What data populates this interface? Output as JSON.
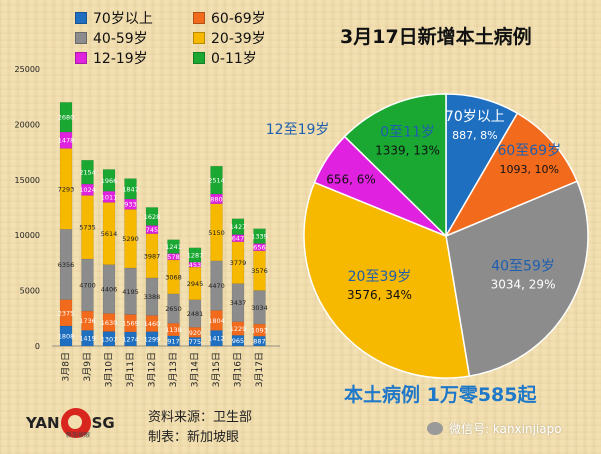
{
  "legend": [
    {
      "label": "70岁以上",
      "color": "#1f6fc0"
    },
    {
      "label": "60-69岁",
      "color": "#f26b1d"
    },
    {
      "label": "40-59岁",
      "color": "#8c8c8c"
    },
    {
      "label": "20-39岁",
      "color": "#f7b800"
    },
    {
      "label": "12-19岁",
      "color": "#e022e0"
    },
    {
      "label": "0-11岁",
      "color": "#1aa832"
    }
  ],
  "source_text": "资料来源：卫生部",
  "maker_text": "制表：新加坡眼",
  "logo": {
    "left": "YAN",
    "right": "SG",
    "sub": "新加坡眼"
  },
  "wechat_text": "微信号: kanxinjiapo",
  "total_text": "本土病例 1万零585起",
  "chart_data": [
    {
      "type": "bar",
      "stacked": true,
      "categories": [
        "3月8日",
        "3月9日",
        "3月10日",
        "3月11日",
        "3月12日",
        "3月13日",
        "3月14日",
        "3月15日",
        "3月16日",
        "3月17日"
      ],
      "ylim": [
        0,
        25000
      ],
      "yticks": [
        "0",
        "5000",
        "10000",
        "15000",
        "20000",
        "25000"
      ],
      "series": [
        {
          "name": "70岁以上",
          "values": [
            1808,
            1419,
            1307,
            1274,
            1299,
            917,
            775,
            1412,
            965,
            887
          ],
          "labels": [
            "1808",
            "1419",
            "1307",
            "1274",
            "1299",
            "917",
            "775",
            "1412",
            "965",
            "887"
          ]
        },
        {
          "name": "60-69岁",
          "values": [
            2375,
            1736,
            1630,
            1569,
            1460,
            1138,
            920,
            1804,
            1229,
            1093
          ],
          "labels": [
            "2375",
            "1736",
            "1630",
            "1569",
            "1460",
            "1138",
            "920",
            "1804",
            "1229",
            "1093"
          ]
        },
        {
          "name": "40-59岁",
          "values": [
            6356,
            4700,
            4406,
            4195,
            3388,
            2650,
            2481,
            4470,
            3437,
            3034
          ],
          "labels": [
            "6356",
            "4700",
            "4406",
            "4195",
            "3388",
            "2650",
            "2481",
            "4470",
            "3437",
            "3034"
          ]
        },
        {
          "name": "20-39岁",
          "values": [
            7293,
            5735,
            5614,
            5290,
            3987,
            3068,
            2945,
            5150,
            3779,
            3576
          ],
          "labels": [
            "7293",
            "5735",
            "5614",
            "5290",
            "3987",
            "3068",
            "2945",
            "5150",
            "3779",
            "3576"
          ]
        },
        {
          "name": "12-19岁",
          "values": [
            1478,
            1024,
            1011,
            933,
            745,
            578,
            453,
            880,
            647,
            656
          ],
          "labels": [
            "1478",
            "1024",
            "1011",
            "933",
            "745",
            "578",
            "453",
            "880",
            "647",
            "656"
          ]
        },
        {
          "name": "0-11岁",
          "values": [
            2680,
            2154,
            1966,
            1847,
            1628,
            1241,
            1287,
            2514,
            1427,
            1339
          ],
          "labels": [
            "2680",
            "2154",
            "1966",
            "1847",
            "1628",
            "1241",
            "1287",
            "2514",
            "1427",
            "1339"
          ]
        }
      ]
    },
    {
      "type": "pie",
      "title": "3月17日新增本土病例",
      "slices": [
        {
          "label": "70岁以上",
          "value": 887,
          "percent": "8%",
          "color": "#1f6fc0",
          "name_text": "70岁以上",
          "value_text": "887, 8%"
        },
        {
          "label": "60至69岁",
          "value": 1093,
          "percent": "10%",
          "color": "#f26b1d",
          "name_text": "60至69岁",
          "value_text": "1093, 10%"
        },
        {
          "label": "40至59岁",
          "value": 3034,
          "percent": "29%",
          "color": "#8c8c8c",
          "name_text": "40至59岁",
          "value_text": "3034, 29%"
        },
        {
          "label": "20至39岁",
          "value": 3576,
          "percent": "34%",
          "color": "#f7b800",
          "name_text": "20至39岁",
          "value_text": "3576, 34%"
        },
        {
          "label": "12至19岁",
          "value": 656,
          "percent": "6%",
          "color": "#e022e0",
          "name_text": "12至19岁",
          "value_text": "656, 6%"
        },
        {
          "label": "0至11岁",
          "value": 1339,
          "percent": "13%",
          "color": "#1aa832",
          "name_text": "0至11岁",
          "value_text": "1339, 13%"
        }
      ]
    }
  ]
}
